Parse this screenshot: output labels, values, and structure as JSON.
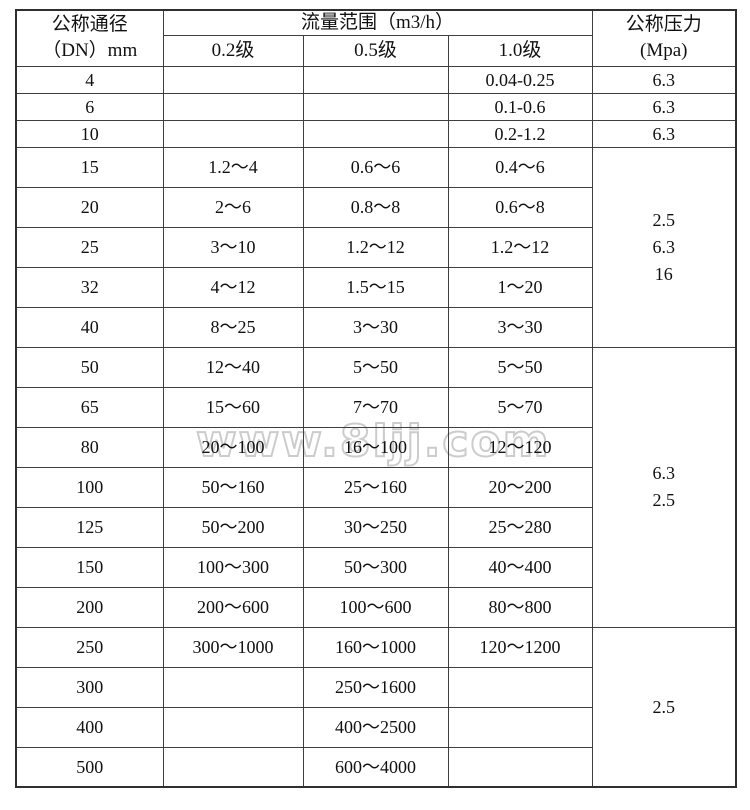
{
  "watermark": "www.8ljj.com",
  "table": {
    "header": {
      "dn_line1": "公称通径",
      "dn_line2": "（DN）mm",
      "flow_range": "流量范围（m3/h）",
      "grades": [
        "0.2级",
        "0.5级",
        "1.0级"
      ],
      "pressure_line1": "公称压力",
      "pressure_line2": "(Mpa)"
    },
    "rows": [
      {
        "dn": "4",
        "g02": "",
        "g05": "",
        "g10": "0.04-0.25",
        "pressure": "6.3"
      },
      {
        "dn": "6",
        "g02": "",
        "g05": "",
        "g10": "0.1-0.6",
        "pressure": "6.3"
      },
      {
        "dn": "10",
        "g02": "",
        "g05": "",
        "g10": "0.2-1.2",
        "pressure": "6.3"
      },
      {
        "dn": "15",
        "g02": "1.2～4",
        "g05": "0.6～6",
        "g10": "0.4～6"
      },
      {
        "dn": "20",
        "g02": "2～6",
        "g05": "0.8～8",
        "g10": "0.6～8"
      },
      {
        "dn": "25",
        "g02": "3～10",
        "g05": "1.2～12",
        "g10": "1.2～12"
      },
      {
        "dn": "32",
        "g02": "4～12",
        "g05": "1.5～15",
        "g10": "1～20"
      },
      {
        "dn": "40",
        "g02": "8～25",
        "g05": "3～30",
        "g10": "3～30"
      },
      {
        "dn": "50",
        "g02": "12～40",
        "g05": "5～50",
        "g10": "5～50"
      },
      {
        "dn": "65",
        "g02": "15～60",
        "g05": "7～70",
        "g10": "5～70"
      },
      {
        "dn": "80",
        "g02": "20～100",
        "g05": "16～100",
        "g10": "12～120"
      },
      {
        "dn": "100",
        "g02": "50～160",
        "g05": "25～160",
        "g10": "20～200"
      },
      {
        "dn": "125",
        "g02": "50～200",
        "g05": "30～250",
        "g10": "25～280"
      },
      {
        "dn": "150",
        "g02": "100～300",
        "g05": "50～300",
        "g10": "40～400"
      },
      {
        "dn": "200",
        "g02": "200～600",
        "g05": "100～600",
        "g10": "80～800"
      },
      {
        "dn": "250",
        "g02": "300～1000",
        "g05": "160～1000",
        "g10": "120～1200"
      },
      {
        "dn": "300",
        "g02": "",
        "g05": "250～1600",
        "g10": ""
      },
      {
        "dn": "400",
        "g02": "",
        "g05": "400～2500",
        "g10": ""
      },
      {
        "dn": "500",
        "g02": "",
        "g05": "600～4000",
        "g10": ""
      }
    ],
    "pressure_groups": [
      {
        "lines": [
          "2.5",
          "6.3",
          "16"
        ]
      },
      {
        "lines": [
          "6.3",
          "2.5"
        ]
      },
      {
        "lines": [
          "2.5"
        ]
      }
    ]
  }
}
